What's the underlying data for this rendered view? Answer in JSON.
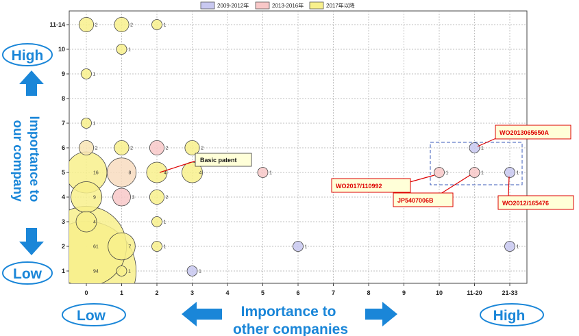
{
  "chart_data": {
    "type": "bubble",
    "x_categories": [
      "0",
      "1",
      "2",
      "3",
      "4",
      "5",
      "6",
      "7",
      "8",
      "9",
      "10",
      "11-20",
      "21-33"
    ],
    "y_categories": [
      "1",
      "2",
      "3",
      "4",
      "5",
      "6",
      "7",
      "8",
      "9",
      "10",
      "11-14"
    ],
    "legend": [
      {
        "label": "2009-2012年",
        "color": "#c8c8f0"
      },
      {
        "label": "2013-2016年",
        "color": "#f8c8c8"
      },
      {
        "label": "2017年以降",
        "color": "#f8f08c"
      }
    ],
    "bubbles": [
      {
        "x": "0",
        "y": "11-14",
        "count": "2",
        "fill": "#f8f08c"
      },
      {
        "x": "1",
        "y": "11-14",
        "count": "2",
        "fill": "#f8f08c"
      },
      {
        "x": "2",
        "y": "11-14",
        "count": "1",
        "fill": "#f8f08c"
      },
      {
        "x": "1",
        "y": "10",
        "count": "1",
        "fill": "#f8f08c"
      },
      {
        "x": "0",
        "y": "9",
        "count": "1",
        "fill": "#f8f08c"
      },
      {
        "x": "0",
        "y": "7",
        "count": "1",
        "fill": "#f8f08c"
      },
      {
        "x": "0",
        "y": "6",
        "count": "2",
        "fill": "#f8e4b4"
      },
      {
        "x": "1",
        "y": "6",
        "count": "2",
        "fill": "#f8f08c"
      },
      {
        "x": "2",
        "y": "6",
        "count": "2",
        "fill": "#f8c8c8"
      },
      {
        "x": "3",
        "y": "6",
        "count": "2",
        "fill": "#f8f08c"
      },
      {
        "x": "11-20",
        "y": "6",
        "count": "1",
        "fill": "#c8c8f0"
      },
      {
        "x": "0",
        "y": "5",
        "count": "16",
        "fill": "#f8f08c"
      },
      {
        "x": "1",
        "y": "5",
        "count": "8",
        "fill": "#f8dcc0"
      },
      {
        "x": "2",
        "y": "5",
        "count": "4",
        "fill": "#f8f08c"
      },
      {
        "x": "3",
        "y": "5",
        "count": "4",
        "fill": "#f8f08c"
      },
      {
        "x": "5",
        "y": "5",
        "count": "1",
        "fill": "#f8c8c8"
      },
      {
        "x": "10",
        "y": "5",
        "count": "1",
        "fill": "#f8c8c8"
      },
      {
        "x": "11-20",
        "y": "5",
        "count": "1",
        "fill": "#f8c8c8"
      },
      {
        "x": "21-33",
        "y": "5",
        "count": "1",
        "fill": "#c8c8f0"
      },
      {
        "x": "0",
        "y": "4",
        "count": "9",
        "fill": "#f8f08c"
      },
      {
        "x": "1",
        "y": "4",
        "count": "3",
        "fill": "#f8c8c8"
      },
      {
        "x": "2",
        "y": "4",
        "count": "2",
        "fill": "#f8f08c"
      },
      {
        "x": "0",
        "y": "3",
        "count": "4",
        "fill": "#f8f08c"
      },
      {
        "x": "2",
        "y": "3",
        "count": "1",
        "fill": "#f8f08c"
      },
      {
        "x": "0",
        "y": "2",
        "count": "61",
        "fill": "#f8f08c"
      },
      {
        "x": "1",
        "y": "2",
        "count": "7",
        "fill": "#f8f08c"
      },
      {
        "x": "2",
        "y": "2",
        "count": "1",
        "fill": "#f8f08c"
      },
      {
        "x": "6",
        "y": "2",
        "count": "1",
        "fill": "#c8c8f0"
      },
      {
        "x": "21-33",
        "y": "2",
        "count": "1",
        "fill": "#c8c8f0"
      },
      {
        "x": "0",
        "y": "1",
        "count": "94",
        "fill": "#f8f08c"
      },
      {
        "x": "1",
        "y": "1",
        "count": "1",
        "fill": "#f8f08c"
      },
      {
        "x": "3",
        "y": "1",
        "count": "1",
        "fill": "#c8c8f0"
      }
    ],
    "callouts": [
      {
        "text": "Basic patent",
        "x": "2",
        "y": "5",
        "style": "black"
      },
      {
        "text": "WO2013065650A",
        "x": "11-20",
        "y": "6",
        "style": "red"
      },
      {
        "text": "WO2017/110992",
        "x": "10",
        "y": "5",
        "style": "red"
      },
      {
        "text": "JP5407006B",
        "x": "11-20",
        "y": "5",
        "style": "red"
      },
      {
        "text": "WO2012/165476",
        "x": "21-33",
        "y": "5",
        "style": "red"
      }
    ],
    "y_axis": {
      "high": "High",
      "low": "Low",
      "title_line1": "Importance to",
      "title_line2": "our company"
    },
    "x_axis": {
      "high": "High",
      "low": "Low",
      "title_line1": "Importance to",
      "title_line2": "other companies"
    }
  }
}
